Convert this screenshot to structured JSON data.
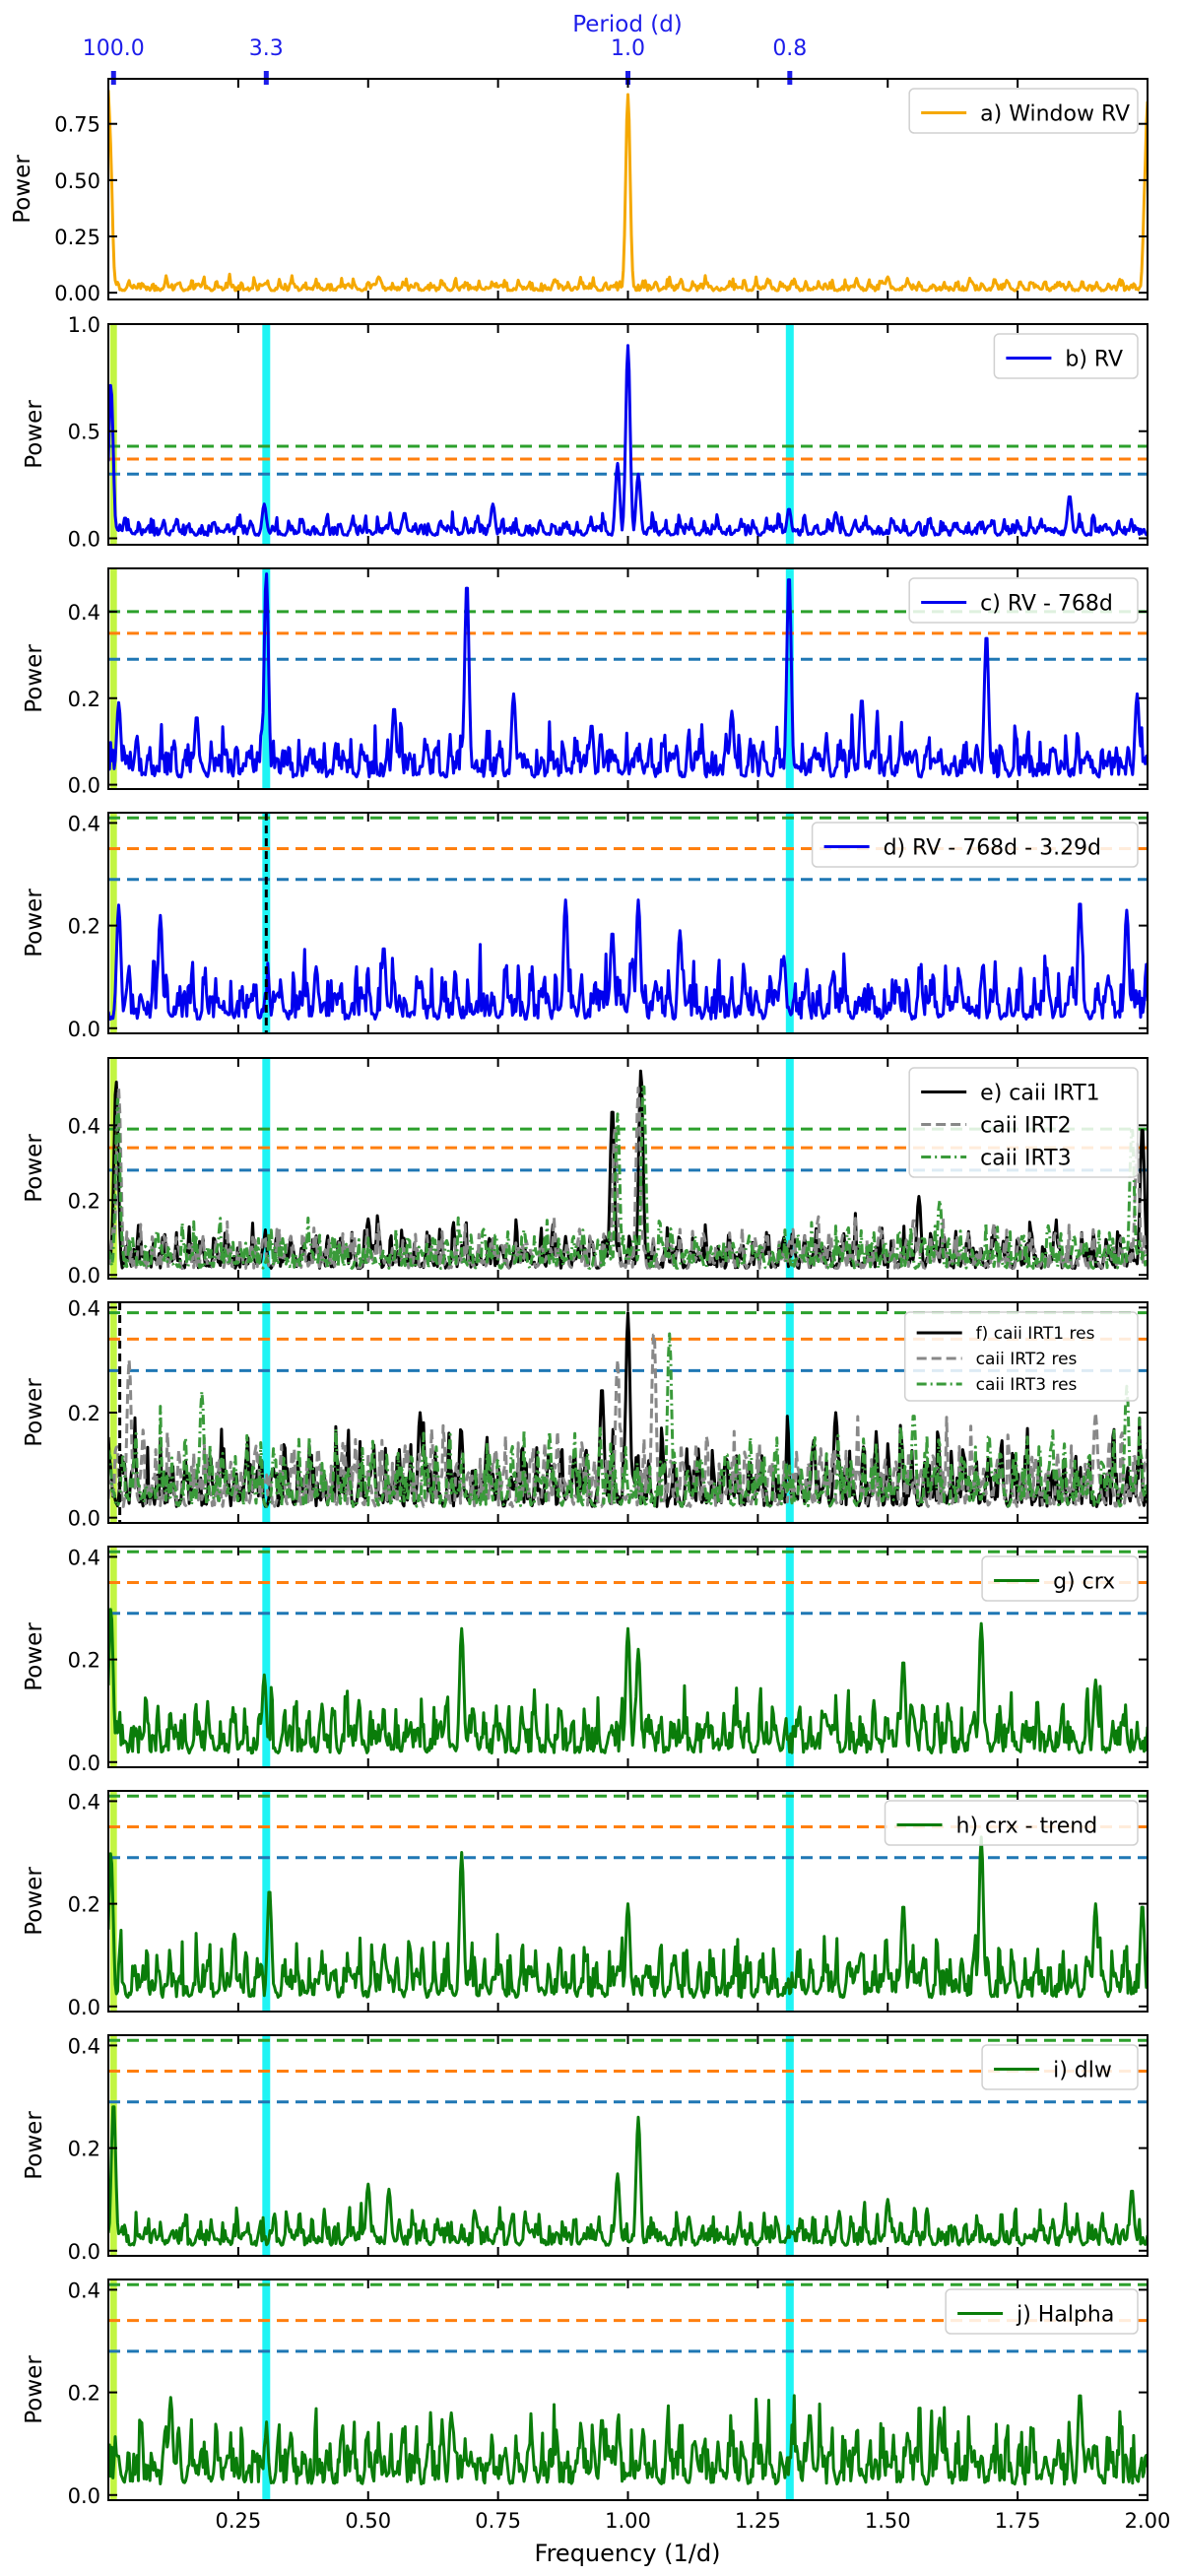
{
  "figure": {
    "top_axis_label": "Period (d)",
    "x_label": "Frequency (1/d)",
    "y_label": "Power",
    "x_range": [
      0.0,
      2.0
    ],
    "x_ticks": [
      0.25,
      0.5,
      0.75,
      1.0,
      1.25,
      1.5,
      1.75,
      2.0
    ],
    "x_tick_labels": [
      "0.25",
      "0.50",
      "0.75",
      "1.00",
      "1.25",
      "1.50",
      "1.75",
      "2.00"
    ],
    "top_ticks": [
      {
        "frequency": 0.01,
        "label": "100.0"
      },
      {
        "frequency": 0.3039,
        "label": "3.3"
      },
      {
        "frequency": 1.0,
        "label": "1.0"
      },
      {
        "frequency": 1.3115,
        "label": "0.8"
      }
    ],
    "colors": {
      "window": "#f5a800",
      "rv": "#0000ee",
      "green": "#0a7d0a",
      "fap_green": "#2ca02c",
      "fap_orange": "#ff7f0e",
      "fap_blue": "#1f77b4",
      "cyan": "#1ff4f4",
      "lime": "#c2f542",
      "top_axis": "#1d1dea"
    }
  },
  "chart_data": [
    {
      "id": "a",
      "type": "line",
      "ylim": [
        -0.03,
        0.95
      ],
      "yticks": [
        0.0,
        0.25,
        0.5,
        0.75
      ],
      "ytick_labels": [
        "0.00",
        "0.25",
        "0.50",
        "0.75"
      ],
      "cyan_band": false,
      "lime_band": false,
      "fap_levels": [],
      "legend": [
        "a) Window RV"
      ],
      "series": [
        {
          "name": "a) Window RV",
          "color": "window",
          "style": "solid",
          "peaks": [
            [
              0.0,
              0.9
            ],
            [
              0.003,
              0.7
            ],
            [
              1.0,
              0.88
            ],
            [
              0.52,
              0.07
            ],
            [
              1.5,
              0.07
            ],
            [
              2.0,
              0.85
            ],
            [
              1.997,
              0.6
            ]
          ],
          "base": 0.025,
          "seed": 3
        }
      ]
    },
    {
      "id": "b",
      "type": "line",
      "ylim": [
        -0.03,
        1.0
      ],
      "yticks": [
        0.0,
        0.5,
        1.0
      ],
      "ytick_labels": [
        "0.0",
        "0.5",
        "1.0"
      ],
      "cyan_band": true,
      "lime_band": true,
      "fap_levels": [
        0.43,
        0.37,
        0.3
      ],
      "legend": [
        "b) RV"
      ],
      "series": [
        {
          "name": "b) RV",
          "color": "rv",
          "style": "solid",
          "peaks": [
            [
              0.005,
              0.72
            ],
            [
              1.0,
              0.9
            ],
            [
              0.3,
              0.16
            ],
            [
              0.74,
              0.16
            ],
            [
              1.31,
              0.14
            ],
            [
              1.85,
              0.2
            ],
            [
              0.98,
              0.35
            ],
            [
              1.02,
              0.3
            ],
            [
              0.57,
              0.12
            ],
            [
              1.4,
              0.12
            ]
          ],
          "base": 0.04,
          "seed": 7
        }
      ]
    },
    {
      "id": "c",
      "type": "line",
      "ylim": [
        -0.01,
        0.5
      ],
      "yticks": [
        0.0,
        0.2,
        0.4
      ],
      "ytick_labels": [
        "0.0",
        "0.2",
        "0.4"
      ],
      "cyan_band": true,
      "lime_band": true,
      "fap_levels": [
        0.4,
        0.35,
        0.29
      ],
      "legend": [
        "c) RV - 768d"
      ],
      "series": [
        {
          "name": "c) RV - 768d",
          "color": "rv",
          "style": "solid",
          "peaks": [
            [
              0.304,
              0.49
            ],
            [
              0.69,
              0.47
            ],
            [
              1.31,
              0.49
            ],
            [
              1.69,
              0.35
            ],
            [
              0.02,
              0.19
            ],
            [
              0.17,
              0.16
            ],
            [
              0.55,
              0.18
            ],
            [
              0.78,
              0.21
            ],
            [
              1.2,
              0.17
            ],
            [
              1.45,
              0.2
            ],
            [
              1.98,
              0.21
            ],
            [
              0.93,
              0.14
            ]
          ],
          "base": 0.05,
          "seed": 11
        }
      ]
    },
    {
      "id": "d",
      "type": "line",
      "ylim": [
        -0.01,
        0.42
      ],
      "yticks": [
        0.0,
        0.2,
        0.4
      ],
      "ytick_labels": [
        "0.0",
        "0.2",
        "0.4"
      ],
      "cyan_band": true,
      "lime_band": true,
      "fap_levels": [
        0.41,
        0.35,
        0.29
      ],
      "vdash": [
        0.3039
      ],
      "legend": [
        "d) RV - 768d - 3.29d"
      ],
      "series": [
        {
          "name": "d) RV - 768d - 3.29d",
          "color": "rv",
          "style": "solid",
          "peaks": [
            [
              0.02,
              0.24
            ],
            [
              0.1,
              0.22
            ],
            [
              0.88,
              0.25
            ],
            [
              1.02,
              0.25
            ],
            [
              1.96,
              0.23
            ],
            [
              1.87,
              0.25
            ],
            [
              0.53,
              0.16
            ],
            [
              0.4,
              0.12
            ],
            [
              1.3,
              0.14
            ],
            [
              0.97,
              0.19
            ],
            [
              1.1,
              0.19
            ]
          ],
          "base": 0.05,
          "seed": 19
        }
      ]
    },
    {
      "id": "e",
      "type": "line",
      "ylim": [
        -0.01,
        0.58
      ],
      "yticks": [
        0.0,
        0.2,
        0.4
      ],
      "ytick_labels": [
        "0.0",
        "0.2",
        "0.4"
      ],
      "cyan_band": true,
      "lime_band": true,
      "fap_levels": [
        0.39,
        0.34,
        0.28
      ],
      "legend": [
        "e) caii IRT1",
        "caii IRT2",
        "caii IRT3"
      ],
      "series": [
        {
          "name": "e) caii IRT1",
          "color": "black",
          "style": "solid",
          "peaks": [
            [
              0.015,
              0.52
            ],
            [
              0.97,
              0.45
            ],
            [
              1.025,
              0.55
            ],
            [
              1.56,
              0.21
            ],
            [
              1.99,
              0.4
            ],
            [
              0.5,
              0.15
            ],
            [
              1.3,
              0.1
            ]
          ],
          "base": 0.05,
          "seed": 23
        },
        {
          "name": "caii IRT2",
          "color": "gray",
          "style": "dash",
          "peaks": [
            [
              0.02,
              0.5
            ],
            [
              0.975,
              0.4
            ],
            [
              1.02,
              0.5
            ],
            [
              1.55,
              0.15
            ],
            [
              1.98,
              0.35
            ]
          ],
          "base": 0.05,
          "seed": 29
        },
        {
          "name": "caii IRT3",
          "color": "green_light",
          "style": "dashdot",
          "peaks": [
            [
              0.018,
              0.47
            ],
            [
              0.98,
              0.43
            ],
            [
              1.03,
              0.52
            ],
            [
              1.6,
              0.2
            ],
            [
              1.97,
              0.4
            ],
            [
              0.8,
              0.12
            ]
          ],
          "base": 0.05,
          "seed": 31
        }
      ]
    },
    {
      "id": "f",
      "type": "line",
      "ylim": [
        -0.01,
        0.41
      ],
      "yticks": [
        0.0,
        0.2,
        0.4
      ],
      "ytick_labels": [
        "0.0",
        "0.2",
        "0.4"
      ],
      "cyan_band": true,
      "lime_band": true,
      "fap_levels": [
        0.39,
        0.34,
        0.28
      ],
      "vdash": [
        0.022
      ],
      "legend": [
        "f) caii IRT1 res",
        "caii IRT2 res",
        "caii IRT3 res"
      ],
      "series": [
        {
          "name": "f) caii IRT1 res",
          "color": "black",
          "style": "solid",
          "peaks": [
            [
              1.0,
              0.39
            ],
            [
              0.95,
              0.25
            ],
            [
              0.6,
              0.2
            ],
            [
              1.4,
              0.2
            ]
          ],
          "base": 0.06,
          "seed": 37
        },
        {
          "name": "caii IRT2 res",
          "color": "gray",
          "style": "dash",
          "peaks": [
            [
              1.05,
              0.36
            ],
            [
              0.04,
              0.3
            ],
            [
              0.98,
              0.3
            ],
            [
              1.9,
              0.2
            ]
          ],
          "base": 0.06,
          "seed": 41
        },
        {
          "name": "caii IRT3 res",
          "color": "green_light",
          "style": "dashdot",
          "peaks": [
            [
              0.18,
              0.24
            ],
            [
              1.08,
              0.35
            ],
            [
              1.96,
              0.25
            ],
            [
              1.55,
              0.2
            ]
          ],
          "base": 0.06,
          "seed": 43
        }
      ]
    },
    {
      "id": "g",
      "type": "line",
      "ylim": [
        -0.01,
        0.42
      ],
      "yticks": [
        0.0,
        0.2,
        0.4
      ],
      "ytick_labels": [
        "0.0",
        "0.2",
        "0.4"
      ],
      "cyan_band": true,
      "lime_band": true,
      "fap_levels": [
        0.41,
        0.35,
        0.29
      ],
      "legend": [
        "g) crx"
      ],
      "series": [
        {
          "name": "g) crx",
          "color": "green",
          "style": "solid",
          "peaks": [
            [
              0.68,
              0.26
            ],
            [
              1.0,
              0.26
            ],
            [
              1.68,
              0.27
            ],
            [
              1.53,
              0.2
            ],
            [
              0.3,
              0.17
            ],
            [
              1.02,
              0.22
            ],
            [
              0.005,
              0.3
            ],
            [
              1.9,
              0.16
            ]
          ],
          "base": 0.05,
          "seed": 47
        }
      ]
    },
    {
      "id": "h",
      "type": "line",
      "ylim": [
        -0.01,
        0.42
      ],
      "yticks": [
        0.0,
        0.2,
        0.4
      ],
      "ytick_labels": [
        "0.0",
        "0.2",
        "0.4"
      ],
      "cyan_band": true,
      "lime_band": true,
      "fap_levels": [
        0.41,
        0.35,
        0.29
      ],
      "legend": [
        "h) crx - trend"
      ],
      "series": [
        {
          "name": "h) crx - trend",
          "color": "green",
          "style": "solid",
          "peaks": [
            [
              0.68,
              0.3
            ],
            [
              1.68,
              0.33
            ],
            [
              0.31,
              0.23
            ],
            [
              1.0,
              0.2
            ],
            [
              1.53,
              0.2
            ],
            [
              0.005,
              0.3
            ],
            [
              1.9,
              0.2
            ],
            [
              1.99,
              0.2
            ]
          ],
          "base": 0.05,
          "seed": 53
        }
      ]
    },
    {
      "id": "i",
      "type": "line",
      "ylim": [
        -0.01,
        0.42
      ],
      "yticks": [
        0.0,
        0.2,
        0.4
      ],
      "ytick_labels": [
        "0.0",
        "0.2",
        "0.4"
      ],
      "cyan_band": true,
      "lime_band": true,
      "fap_levels": [
        0.41,
        0.35,
        0.29
      ],
      "legend": [
        "i) dlw"
      ],
      "series": [
        {
          "name": "i) dlw",
          "color": "green",
          "style": "solid",
          "peaks": [
            [
              0.01,
              0.29
            ],
            [
              1.02,
              0.26
            ],
            [
              0.98,
              0.15
            ],
            [
              0.5,
              0.13
            ],
            [
              0.54,
              0.12
            ],
            [
              1.97,
              0.12
            ],
            [
              1.5,
              0.1
            ]
          ],
          "base": 0.03,
          "seed": 59
        }
      ]
    },
    {
      "id": "j",
      "type": "line",
      "ylim": [
        -0.01,
        0.42
      ],
      "yticks": [
        0.0,
        0.2,
        0.4
      ],
      "ytick_labels": [
        "0.0",
        "0.2",
        "0.4"
      ],
      "cyan_band": true,
      "lime_band": true,
      "fap_levels": [
        0.41,
        0.34,
        0.28
      ],
      "legend": [
        "j) Halpha"
      ],
      "series": [
        {
          "name": "j) Halpha",
          "color": "green",
          "style": "solid",
          "peaks": [
            [
              0.12,
              0.19
            ],
            [
              1.87,
              0.2
            ],
            [
              1.35,
              0.16
            ],
            [
              0.66,
              0.16
            ],
            [
              0.95,
              0.15
            ],
            [
              1.6,
              0.15
            ]
          ],
          "base": 0.06,
          "seed": 61
        }
      ]
    }
  ]
}
